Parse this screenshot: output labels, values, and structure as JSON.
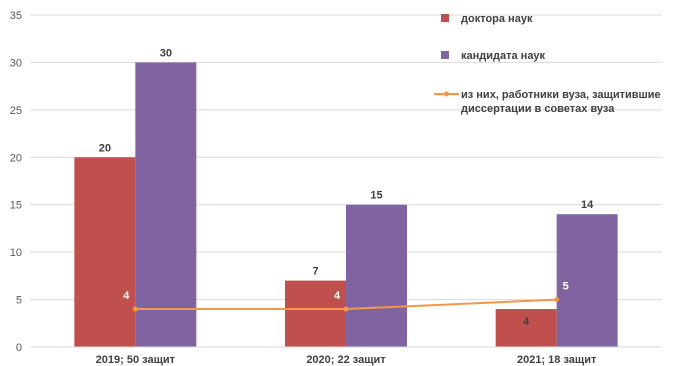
{
  "chart_data": {
    "type": "bar",
    "categories": [
      "2019; 50 защит",
      "2020; 22 защит",
      "2021; 18 защит"
    ],
    "ylim": [
      0,
      35
    ],
    "yticks": [
      0,
      5,
      10,
      15,
      20,
      25,
      30,
      35
    ],
    "grid": true,
    "legend_position": "right",
    "series": [
      {
        "name": "доктора наук",
        "type": "bar",
        "color": "#c0504d",
        "values": [
          20,
          7,
          4
        ]
      },
      {
        "name": "кандидата наук",
        "type": "bar",
        "color": "#8064a2",
        "values": [
          30,
          15,
          14
        ]
      },
      {
        "name_lines": [
          "из них, работники вуза, защитившие",
          "диссертации в советах вуза"
        ],
        "type": "line",
        "color": "#f79646",
        "values": [
          4,
          4,
          5
        ]
      }
    ]
  }
}
